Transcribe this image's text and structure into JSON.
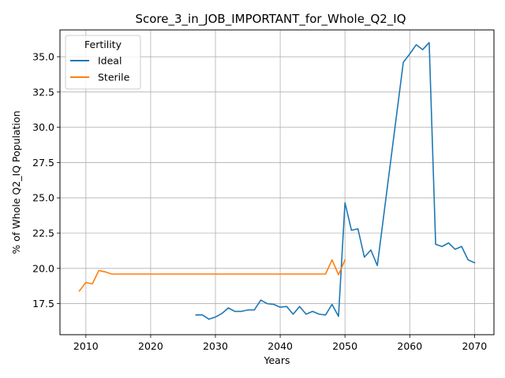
{
  "chart_data": {
    "type": "line",
    "title": "Score_3_in_JOB_IMPORTANT_for_Whole_Q2_IQ",
    "xlabel": "Years",
    "ylabel": "% of Whole Q2_IQ Population",
    "xlim": [
      2006,
      2073
    ],
    "ylim": [
      15.3,
      36.9
    ],
    "xticks": [
      2010,
      2020,
      2030,
      2040,
      2050,
      2060,
      2070
    ],
    "yticks": [
      17.5,
      20.0,
      22.5,
      25.0,
      27.5,
      30.0,
      32.5,
      35.0
    ],
    "ytick_labels": [
      "17.5",
      "20.0",
      "22.5",
      "25.0",
      "27.5",
      "30.0",
      "32.5",
      "35.0"
    ],
    "grid": true,
    "legend": {
      "title": "Fertility",
      "placement": "upper-left"
    },
    "series": [
      {
        "name": "Ideal",
        "color": "#1f77b4",
        "x": [
          2027,
          2028,
          2029,
          2030,
          2031,
          2032,
          2033,
          2034,
          2035,
          2036,
          2037,
          2038,
          2039,
          2040,
          2041,
          2042,
          2043,
          2044,
          2045,
          2046,
          2047,
          2048,
          2049,
          2050,
          2051,
          2052,
          2053,
          2054,
          2055,
          2059,
          2060,
          2061,
          2062,
          2063,
          2064,
          2065,
          2066,
          2067,
          2068,
          2069,
          2070
        ],
        "values": [
          16.7,
          16.7,
          16.4,
          16.55,
          16.8,
          17.2,
          16.95,
          16.95,
          17.05,
          17.05,
          17.75,
          17.5,
          17.45,
          17.25,
          17.3,
          16.75,
          17.3,
          16.75,
          16.95,
          16.75,
          16.7,
          17.45,
          16.6,
          24.65,
          22.7,
          22.8,
          20.8,
          21.3,
          20.2,
          34.6,
          35.2,
          35.85,
          35.5,
          36.0,
          21.7,
          21.55,
          21.8,
          21.35,
          21.55,
          20.6,
          20.4
        ]
      },
      {
        "name": "Sterile",
        "color": "#ff7f0e",
        "x": [
          2009,
          2010,
          2011,
          2012,
          2013,
          2014,
          2015,
          2016,
          2017,
          2018,
          2019,
          2020,
          2021,
          2022,
          2023,
          2024,
          2025,
          2026,
          2027,
          2028,
          2029,
          2030,
          2031,
          2032,
          2033,
          2034,
          2035,
          2036,
          2037,
          2038,
          2039,
          2040,
          2041,
          2042,
          2043,
          2044,
          2045,
          2046,
          2047,
          2048,
          2049,
          2050
        ],
        "values": [
          18.4,
          19.0,
          18.9,
          19.85,
          19.75,
          19.6,
          19.6,
          19.6,
          19.6,
          19.6,
          19.6,
          19.6,
          19.6,
          19.6,
          19.6,
          19.6,
          19.6,
          19.6,
          19.6,
          19.6,
          19.6,
          19.6,
          19.6,
          19.6,
          19.6,
          19.6,
          19.6,
          19.6,
          19.6,
          19.6,
          19.6,
          19.6,
          19.6,
          19.6,
          19.6,
          19.6,
          19.6,
          19.6,
          19.6,
          20.6,
          19.55,
          20.6
        ]
      }
    ]
  }
}
